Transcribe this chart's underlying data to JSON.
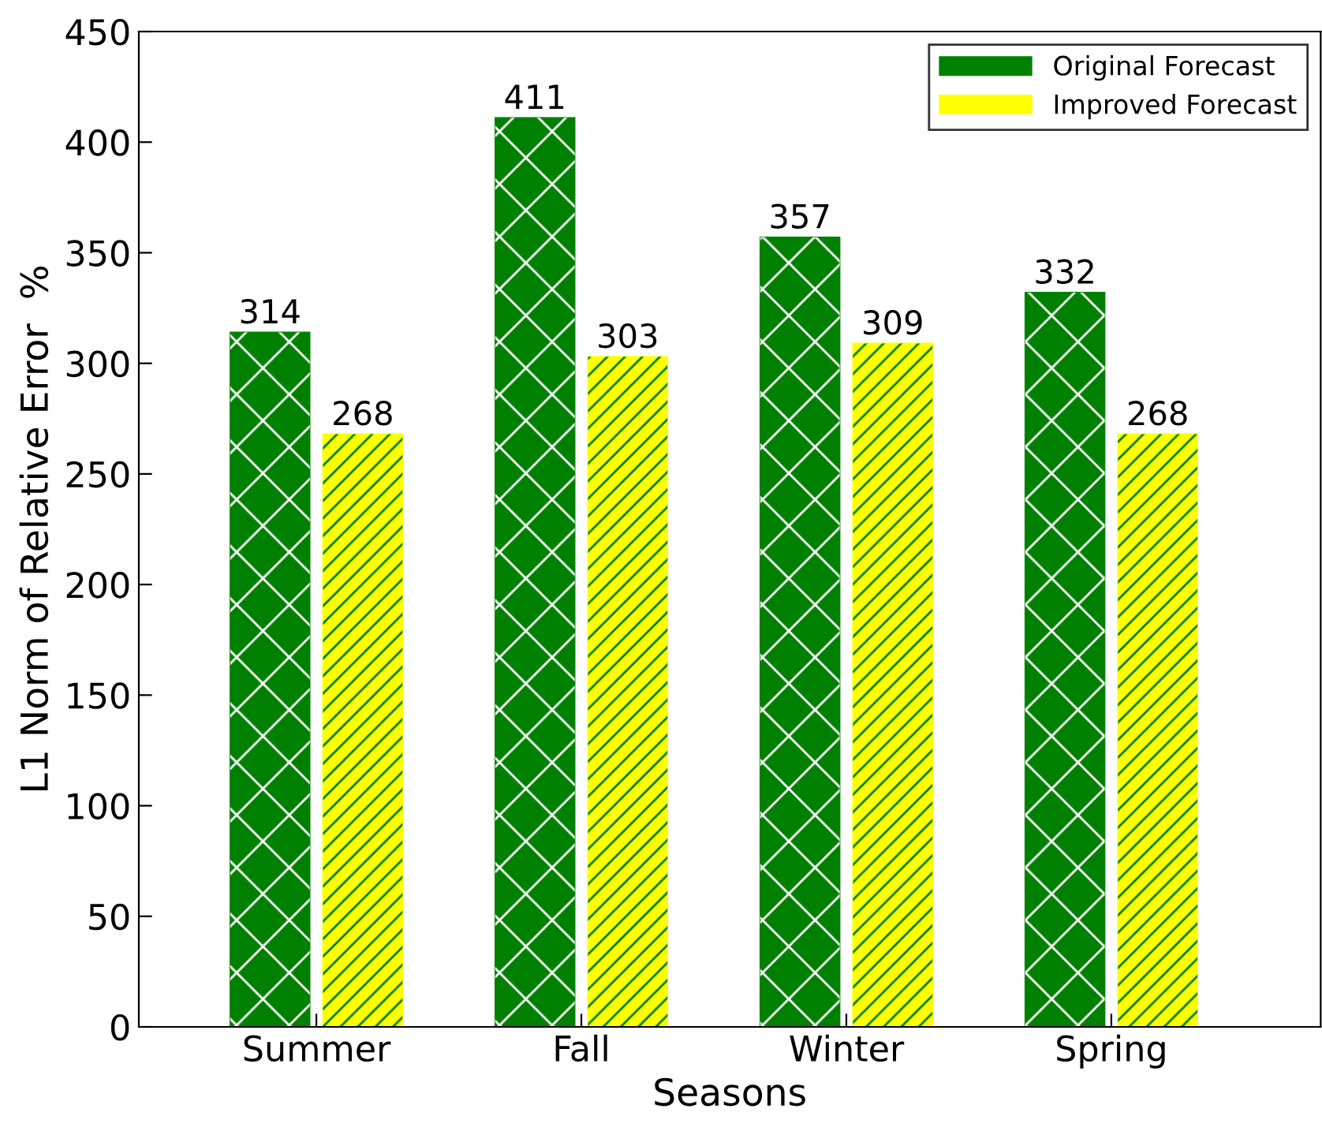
{
  "chart_data": {
    "type": "bar",
    "xlabel": "Seasons",
    "ylabel": "L1 Norm of Relative Error  %",
    "categories": [
      "Summer",
      "Fall",
      "Winter",
      "Spring"
    ],
    "series": [
      {
        "name": "Original Forecast",
        "color": "#008000",
        "values": [
          314,
          411,
          357,
          332
        ]
      },
      {
        "name": "Improved Forecast",
        "color": "#ffff00",
        "values": [
          268,
          303,
          309,
          268
        ]
      }
    ],
    "ylim": [
      0,
      450
    ],
    "yticks": [
      0,
      50,
      100,
      150,
      200,
      250,
      300,
      350,
      400,
      450
    ],
    "data_labels": true,
    "legend": "top right",
    "grid": false
  }
}
